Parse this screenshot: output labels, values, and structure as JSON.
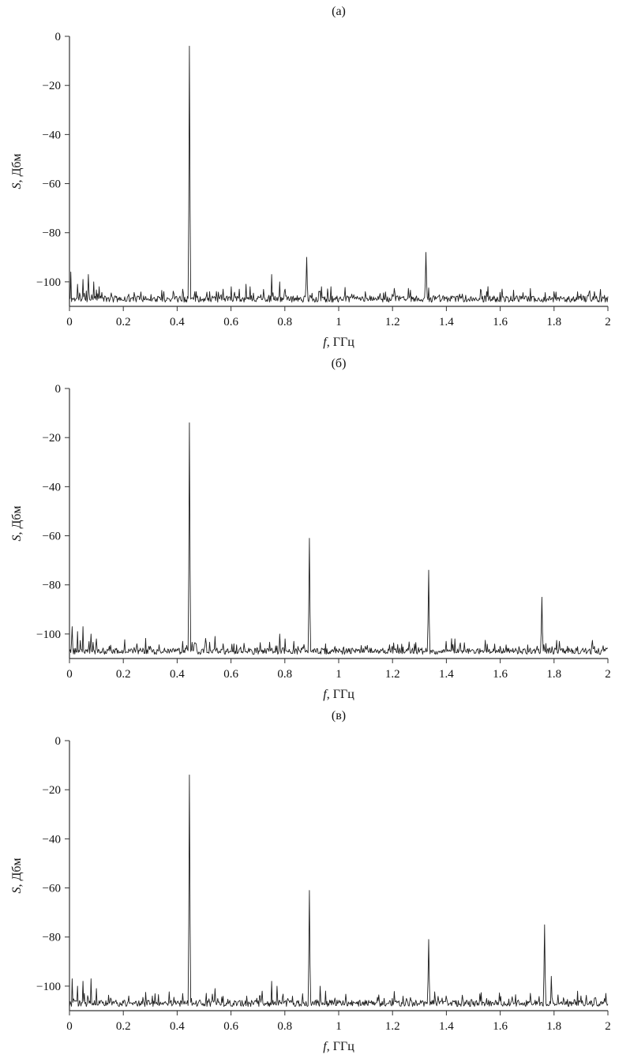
{
  "figure": {
    "background": "#ffffff",
    "line_color": "#1f1f1f",
    "axis_color": "#333333",
    "text_color": "#111111"
  },
  "chart_data": [
    {
      "type": "line",
      "panel_label": "(а)",
      "xlabel": "f, ГГц",
      "ylabel": "S, Дбм",
      "xlim": [
        0,
        2
      ],
      "ylim": [
        -110,
        0
      ],
      "xticks": [
        0,
        0.2,
        0.4,
        0.6,
        0.8,
        1,
        1.2,
        1.4,
        1.6,
        1.8,
        2
      ],
      "yticks": [
        0,
        -20,
        -40,
        -60,
        -80,
        -100
      ],
      "grid": false,
      "legend": false,
      "noise_floor_dbm": -107,
      "main_peaks": [
        {
          "f": 0.445,
          "s": -4
        },
        {
          "f": 0.88,
          "s": -90
        },
        {
          "f": 1.325,
          "s": -88
        }
      ],
      "minor_spikes": [
        {
          "f": 0.005,
          "s": -96
        },
        {
          "f": 0.03,
          "s": -101
        },
        {
          "f": 0.05,
          "s": -99
        },
        {
          "f": 0.07,
          "s": -97
        },
        {
          "f": 0.09,
          "s": -100
        },
        {
          "f": 0.11,
          "s": -102
        },
        {
          "f": 0.22,
          "s": -105
        },
        {
          "f": 0.35,
          "s": -104
        },
        {
          "f": 0.42,
          "s": -103
        },
        {
          "f": 0.47,
          "s": -104
        },
        {
          "f": 0.52,
          "s": -104
        },
        {
          "f": 0.57,
          "s": -103
        },
        {
          "f": 0.6,
          "s": -102
        },
        {
          "f": 0.63,
          "s": -103
        },
        {
          "f": 0.655,
          "s": -101
        },
        {
          "f": 0.67,
          "s": -102
        },
        {
          "f": 0.75,
          "s": -97
        },
        {
          "f": 0.78,
          "s": -100
        },
        {
          "f": 0.8,
          "s": -103
        },
        {
          "f": 0.935,
          "s": -102
        },
        {
          "f": 1.05,
          "s": -105
        },
        {
          "f": 1.1,
          "s": -104
        },
        {
          "f": 1.2,
          "s": -105
        },
        {
          "f": 1.45,
          "s": -105
        },
        {
          "f": 1.55,
          "s": -104
        },
        {
          "f": 1.65,
          "s": -105
        },
        {
          "f": 1.8,
          "s": -104
        },
        {
          "f": 1.9,
          "s": -105
        },
        {
          "f": 1.95,
          "s": -104
        }
      ]
    },
    {
      "type": "line",
      "panel_label": "(б)",
      "xlabel": "f, ГГц",
      "ylabel": "S, Дбм",
      "xlim": [
        0,
        2
      ],
      "ylim": [
        -110,
        0
      ],
      "xticks": [
        0,
        0.2,
        0.4,
        0.6,
        0.8,
        1,
        1.2,
        1.4,
        1.6,
        1.8,
        2
      ],
      "yticks": [
        0,
        -20,
        -40,
        -60,
        -80,
        -100
      ],
      "grid": false,
      "legend": false,
      "noise_floor_dbm": -107,
      "main_peaks": [
        {
          "f": 0.445,
          "s": -14
        },
        {
          "f": 0.89,
          "s": -61
        },
        {
          "f": 1.335,
          "s": -74
        },
        {
          "f": 1.755,
          "s": -85
        }
      ],
      "minor_spikes": [
        {
          "f": 0.01,
          "s": -97
        },
        {
          "f": 0.03,
          "s": -99
        },
        {
          "f": 0.05,
          "s": -97
        },
        {
          "f": 0.08,
          "s": -100
        },
        {
          "f": 0.1,
          "s": -102
        },
        {
          "f": 0.25,
          "s": -104
        },
        {
          "f": 0.3,
          "s": -105
        },
        {
          "f": 0.42,
          "s": -103
        },
        {
          "f": 0.47,
          "s": -104
        },
        {
          "f": 0.54,
          "s": -101
        },
        {
          "f": 0.57,
          "s": -104
        },
        {
          "f": 0.78,
          "s": -100
        },
        {
          "f": 0.8,
          "s": -102
        },
        {
          "f": 0.95,
          "s": -104
        },
        {
          "f": 1.1,
          "s": -105
        },
        {
          "f": 1.2,
          "s": -105
        },
        {
          "f": 1.4,
          "s": -103
        },
        {
          "f": 1.45,
          "s": -105
        },
        {
          "f": 1.6,
          "s": -105
        },
        {
          "f": 1.82,
          "s": -103
        },
        {
          "f": 1.85,
          "s": -105
        },
        {
          "f": 1.95,
          "s": -105
        }
      ]
    },
    {
      "type": "line",
      "panel_label": "(в)",
      "xlabel": "f, ГГц",
      "ylabel": "S, Дбм",
      "xlim": [
        0,
        2
      ],
      "ylim": [
        -110,
        0
      ],
      "xticks": [
        0,
        0.2,
        0.4,
        0.6,
        0.8,
        1,
        1.2,
        1.4,
        1.6,
        1.8,
        2
      ],
      "yticks": [
        0,
        -20,
        -40,
        -60,
        -80,
        -100
      ],
      "grid": false,
      "legend": false,
      "noise_floor_dbm": -107,
      "main_peaks": [
        {
          "f": 0.445,
          "s": -14
        },
        {
          "f": 0.89,
          "s": -61
        },
        {
          "f": 1.335,
          "s": -81
        },
        {
          "f": 1.765,
          "s": -75
        }
      ],
      "minor_spikes": [
        {
          "f": 0.01,
          "s": -97
        },
        {
          "f": 0.03,
          "s": -100
        },
        {
          "f": 0.05,
          "s": -98
        },
        {
          "f": 0.08,
          "s": -97
        },
        {
          "f": 0.1,
          "s": -101
        },
        {
          "f": 0.22,
          "s": -104
        },
        {
          "f": 0.42,
          "s": -103
        },
        {
          "f": 0.54,
          "s": -101
        },
        {
          "f": 0.75,
          "s": -98
        },
        {
          "f": 0.77,
          "s": -100
        },
        {
          "f": 0.93,
          "s": -100
        },
        {
          "f": 0.95,
          "s": -102
        },
        {
          "f": 1.2,
          "s": -105
        },
        {
          "f": 1.4,
          "s": -104
        },
        {
          "f": 1.55,
          "s": -105
        },
        {
          "f": 1.79,
          "s": -96
        },
        {
          "f": 1.9,
          "s": -104
        },
        {
          "f": 1.95,
          "s": -105
        }
      ]
    }
  ]
}
